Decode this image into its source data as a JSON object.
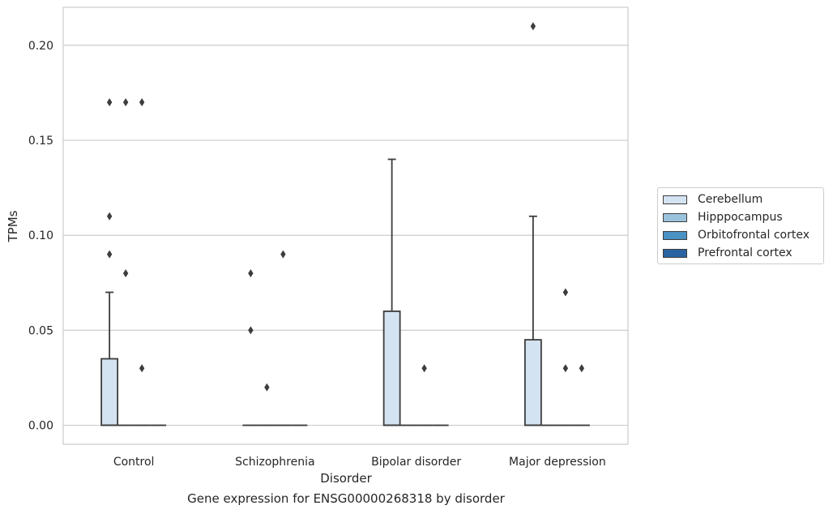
{
  "caption": "Gene expression for ENSG00000268318 by disorder",
  "chart_data": {
    "type": "box",
    "xlabel": "Disorder",
    "ylabel": "TPMs",
    "ylim": [
      -0.01,
      0.22
    ],
    "yticks": [
      0.0,
      0.05,
      0.1,
      0.15,
      0.2
    ],
    "ytick_labels": [
      "0.00",
      "0.05",
      "0.10",
      "0.15",
      "0.20"
    ],
    "grid": "horizontal",
    "legend_position": "right",
    "categories": [
      "Control",
      "Schizophrenia",
      "Bipolar disorder",
      "Major depression"
    ],
    "series": [
      {
        "name": "Cerebellum",
        "color": "#d4e3f1",
        "boxes": [
          {
            "q1": 0.0,
            "median": 0.0,
            "q3": 0.035,
            "whisker_low": 0.0,
            "whisker_high": 0.07,
            "outliers": [
              0.09,
              0.11,
              0.17
            ]
          },
          {
            "q1": 0.0,
            "median": 0.0,
            "q3": 0.0,
            "whisker_low": 0.0,
            "whisker_high": 0.0,
            "outliers": [
              0.05,
              0.08
            ]
          },
          {
            "q1": 0.0,
            "median": 0.0,
            "q3": 0.06,
            "whisker_low": 0.0,
            "whisker_high": 0.14,
            "outliers": []
          },
          {
            "q1": 0.0,
            "median": 0.0,
            "q3": 0.045,
            "whisker_low": 0.0,
            "whisker_high": 0.11,
            "outliers": [
              0.21
            ]
          }
        ]
      },
      {
        "name": "Hipppocampus",
        "color": "#9ac2dc",
        "boxes": [
          {
            "q1": 0.0,
            "median": 0.0,
            "q3": 0.0,
            "whisker_low": 0.0,
            "whisker_high": 0.0,
            "outliers": [
              0.08,
              0.17
            ]
          },
          {
            "q1": 0.0,
            "median": 0.0,
            "q3": 0.0,
            "whisker_low": 0.0,
            "whisker_high": 0.0,
            "outliers": [
              0.02
            ]
          },
          {
            "q1": 0.0,
            "median": 0.0,
            "q3": 0.0,
            "whisker_low": 0.0,
            "whisker_high": 0.0,
            "outliers": []
          },
          {
            "q1": 0.0,
            "median": 0.0,
            "q3": 0.0,
            "whisker_low": 0.0,
            "whisker_high": 0.0,
            "outliers": []
          }
        ]
      },
      {
        "name": "Orbitofrontal cortex",
        "color": "#4a91c4",
        "boxes": [
          {
            "q1": 0.0,
            "median": 0.0,
            "q3": 0.0,
            "whisker_low": 0.0,
            "whisker_high": 0.0,
            "outliers": [
              0.03,
              0.17
            ]
          },
          {
            "q1": 0.0,
            "median": 0.0,
            "q3": 0.0,
            "whisker_low": 0.0,
            "whisker_high": 0.0,
            "outliers": [
              0.09
            ]
          },
          {
            "q1": 0.0,
            "median": 0.0,
            "q3": 0.0,
            "whisker_low": 0.0,
            "whisker_high": 0.0,
            "outliers": [
              0.03
            ]
          },
          {
            "q1": 0.0,
            "median": 0.0,
            "q3": 0.0,
            "whisker_low": 0.0,
            "whisker_high": 0.0,
            "outliers": [
              0.03,
              0.07
            ]
          }
        ]
      },
      {
        "name": "Prefrontal cortex",
        "color": "#2a64a0",
        "boxes": [
          {
            "q1": 0.0,
            "median": 0.0,
            "q3": 0.0,
            "whisker_low": 0.0,
            "whisker_high": 0.0,
            "outliers": []
          },
          {
            "q1": 0.0,
            "median": 0.0,
            "q3": 0.0,
            "whisker_low": 0.0,
            "whisker_high": 0.0,
            "outliers": []
          },
          {
            "q1": 0.0,
            "median": 0.0,
            "q3": 0.0,
            "whisker_low": 0.0,
            "whisker_high": 0.0,
            "outliers": []
          },
          {
            "q1": 0.0,
            "median": 0.0,
            "q3": 0.0,
            "whisker_low": 0.0,
            "whisker_high": 0.0,
            "outliers": [
              0.03
            ]
          }
        ]
      }
    ]
  }
}
